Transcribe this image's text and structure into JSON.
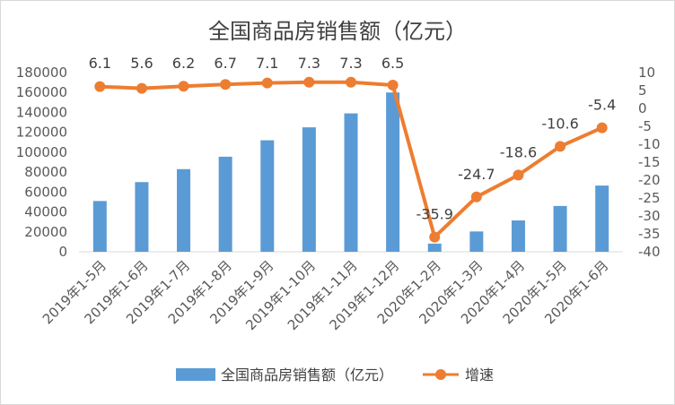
{
  "chart_data": {
    "type": "bar+line",
    "title": "全国商品房销售额（亿元）",
    "categories": [
      "2019年1-5月",
      "2019年1-6月",
      "2019年1-7月",
      "2019年1-8月",
      "2019年1-9月",
      "2019年1-10月",
      "2019年1-11月",
      "2019年1-12月",
      "2020年1-2月",
      "2020年1-3月",
      "2020年1-4月",
      "2020年1-5月",
      "2020年1-6月"
    ],
    "series": [
      {
        "name": "全国商品房销售额（亿元）",
        "type": "bar",
        "axis": "left",
        "color": "#5b9bd5",
        "values": [
          51000,
          70000,
          83000,
          95500,
          112000,
          125000,
          139000,
          160000,
          8200,
          20400,
          31500,
          46000,
          66500
        ]
      },
      {
        "name": "增速",
        "type": "line",
        "axis": "right",
        "color": "#ed7d31",
        "values": [
          6.1,
          5.6,
          6.2,
          6.7,
          7.1,
          7.3,
          7.3,
          6.5,
          -35.9,
          -24.7,
          -18.6,
          -10.6,
          -5.4
        ],
        "labels": [
          "6.1",
          "5.6",
          "6.2",
          "6.7",
          "7.1",
          "7.3",
          "7.3",
          "6.5",
          "-35.9",
          "-24.7",
          "-18.6",
          "-10.6",
          "-5.4"
        ]
      }
    ],
    "y_left": {
      "min": 0,
      "max": 180000,
      "ticks": [
        "0",
        "20000",
        "40000",
        "60000",
        "80000",
        "100000",
        "120000",
        "140000",
        "160000",
        "180000"
      ]
    },
    "y_right": {
      "min": -40,
      "max": 10,
      "ticks": [
        "10",
        "5",
        "0",
        "-5",
        "-10",
        "-15",
        "-20",
        "-25",
        "-30",
        "-35",
        "-40"
      ]
    },
    "grid": false,
    "legend_position": "bottom"
  }
}
